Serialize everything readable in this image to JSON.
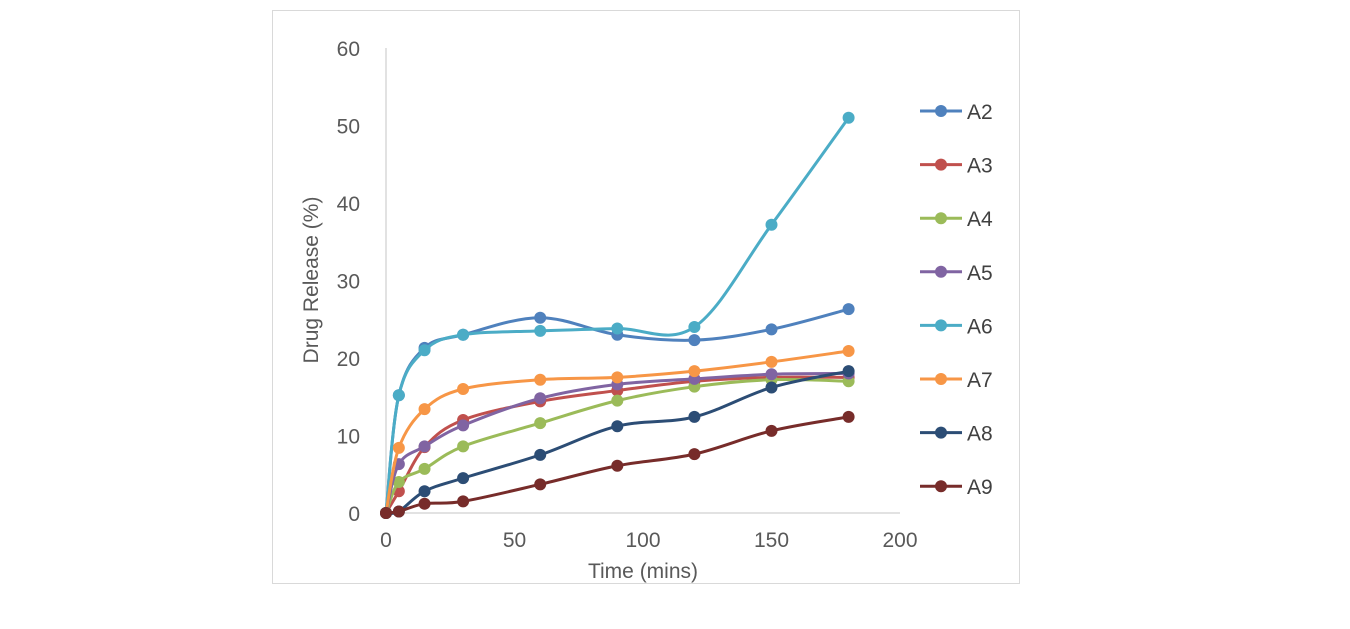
{
  "chart_data": {
    "type": "line",
    "title": "",
    "xlabel": "Time (mins)",
    "ylabel": "Drug Release (%)",
    "xlim": [
      0,
      200
    ],
    "ylim": [
      0,
      60
    ],
    "xticks": [
      0,
      50,
      100,
      150,
      200
    ],
    "yticks": [
      0,
      10,
      20,
      30,
      40,
      50,
      60
    ],
    "grid": false,
    "legend": "right",
    "smooth": true,
    "x": [
      0,
      5,
      15,
      30,
      60,
      90,
      120,
      150,
      180
    ],
    "series": [
      {
        "name": "A2",
        "color": "#4f81bd",
        "values": [
          0,
          15.2,
          21.3,
          23.0,
          25.2,
          23.0,
          22.3,
          23.7,
          26.3
        ]
      },
      {
        "name": "A3",
        "color": "#c0504d",
        "values": [
          0,
          2.8,
          8.5,
          12.0,
          14.4,
          15.8,
          17.0,
          17.5,
          17.5
        ]
      },
      {
        "name": "A4",
        "color": "#9bbb59",
        "values": [
          0,
          4.0,
          5.7,
          8.6,
          11.6,
          14.5,
          16.3,
          17.2,
          17.0
        ]
      },
      {
        "name": "A5",
        "color": "#8064a2",
        "values": [
          0,
          6.3,
          8.6,
          11.3,
          14.8,
          16.6,
          17.3,
          17.9,
          18.0
        ]
      },
      {
        "name": "A6",
        "color": "#4bacc6",
        "values": [
          0,
          15.2,
          21.0,
          23.0,
          23.5,
          23.8,
          24.0,
          37.2,
          51.0
        ]
      },
      {
        "name": "A7",
        "color": "#f79646",
        "values": [
          0,
          8.4,
          13.4,
          16.0,
          17.2,
          17.5,
          18.3,
          19.5,
          20.9
        ]
      },
      {
        "name": "A8",
        "color": "#2c4d75",
        "values": [
          0,
          0.2,
          2.8,
          4.5,
          7.5,
          11.2,
          12.4,
          16.2,
          18.3
        ]
      },
      {
        "name": "A9",
        "color": "#772c2a",
        "values": [
          0,
          0.2,
          1.2,
          1.5,
          3.7,
          6.1,
          7.6,
          10.6,
          12.4
        ]
      }
    ]
  }
}
